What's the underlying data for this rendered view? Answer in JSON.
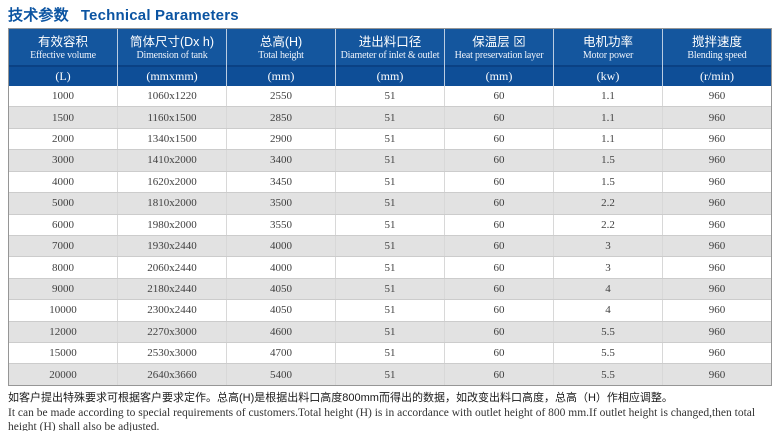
{
  "page_title": {
    "cn": "技术参数",
    "en": "Technical Parameters"
  },
  "table": {
    "columns": [
      {
        "key": "effective-volume",
        "cn": "有效容积",
        "en": "Effective volume",
        "unit": "(L)"
      },
      {
        "key": "tank-dimension",
        "cn": "筒体尺寸(Dx h)",
        "en": "Dimension of tank",
        "unit": "(mmxmm)"
      },
      {
        "key": "total-height",
        "cn": "总高(H)",
        "en": "Total height",
        "unit": "(mm)"
      },
      {
        "key": "inlet-outlet-diameter",
        "cn": "进出料口径",
        "en": "Diameter of inlet & outlet",
        "unit": "(mm)"
      },
      {
        "key": "heat-preservation-layer",
        "cn": "保温层 ⊠",
        "en": "Heat preservation layer",
        "unit": "(mm)"
      },
      {
        "key": "motor-power",
        "cn": "电机功率",
        "en": "Motor power",
        "unit": "(kw)"
      },
      {
        "key": "blending-speed",
        "cn": "搅拌速度",
        "en": "Blending speed",
        "unit": "(r/min)"
      }
    ],
    "rows": [
      [
        "1000",
        "1060x1220",
        "2550",
        "51",
        "60",
        "1.1",
        "960"
      ],
      [
        "1500",
        "1160x1500",
        "2850",
        "51",
        "60",
        "1.1",
        "960"
      ],
      [
        "2000",
        "1340x1500",
        "2900",
        "51",
        "60",
        "1.1",
        "960"
      ],
      [
        "3000",
        "1410x2000",
        "3400",
        "51",
        "60",
        "1.5",
        "960"
      ],
      [
        "4000",
        "1620x2000",
        "3450",
        "51",
        "60",
        "1.5",
        "960"
      ],
      [
        "5000",
        "1810x2000",
        "3500",
        "51",
        "60",
        "2.2",
        "960"
      ],
      [
        "6000",
        "1980x2000",
        "3550",
        "51",
        "60",
        "2.2",
        "960"
      ],
      [
        "7000",
        "1930x2440",
        "4000",
        "51",
        "60",
        "3",
        "960"
      ],
      [
        "8000",
        "2060x2440",
        "4000",
        "51",
        "60",
        "3",
        "960"
      ],
      [
        "9000",
        "2180x2440",
        "4050",
        "51",
        "60",
        "4",
        "960"
      ],
      [
        "10000",
        "2300x2440",
        "4050",
        "51",
        "60",
        "4",
        "960"
      ],
      [
        "12000",
        "2270x3000",
        "4600",
        "51",
        "60",
        "5.5",
        "960"
      ],
      [
        "15000",
        "2530x3000",
        "4700",
        "51",
        "60",
        "5.5",
        "960"
      ],
      [
        "20000",
        "2640x3660",
        "5400",
        "51",
        "60",
        "5.5",
        "960"
      ]
    ]
  },
  "footnote": {
    "cn": "如客户提出特殊要求可根据客户要求定作。总高(H)是根据出料口高度800mm而得出的数据，如改变出料口高度，总高（H）作相应调整。",
    "en": "It can be made according to special requirements of customers.Total height (H) is in accordance with outlet height of 800 mm.If outlet height is changed,then total height (H) shall also be adjusted."
  },
  "colors": {
    "title_blue": "#0b54a2",
    "header_blue": "#14569e",
    "unit_band_blue": "#0e4e97",
    "unit_divider": "#0a4184",
    "row_alt_gray": "#e2e2e2",
    "outer_border": "#969696"
  }
}
